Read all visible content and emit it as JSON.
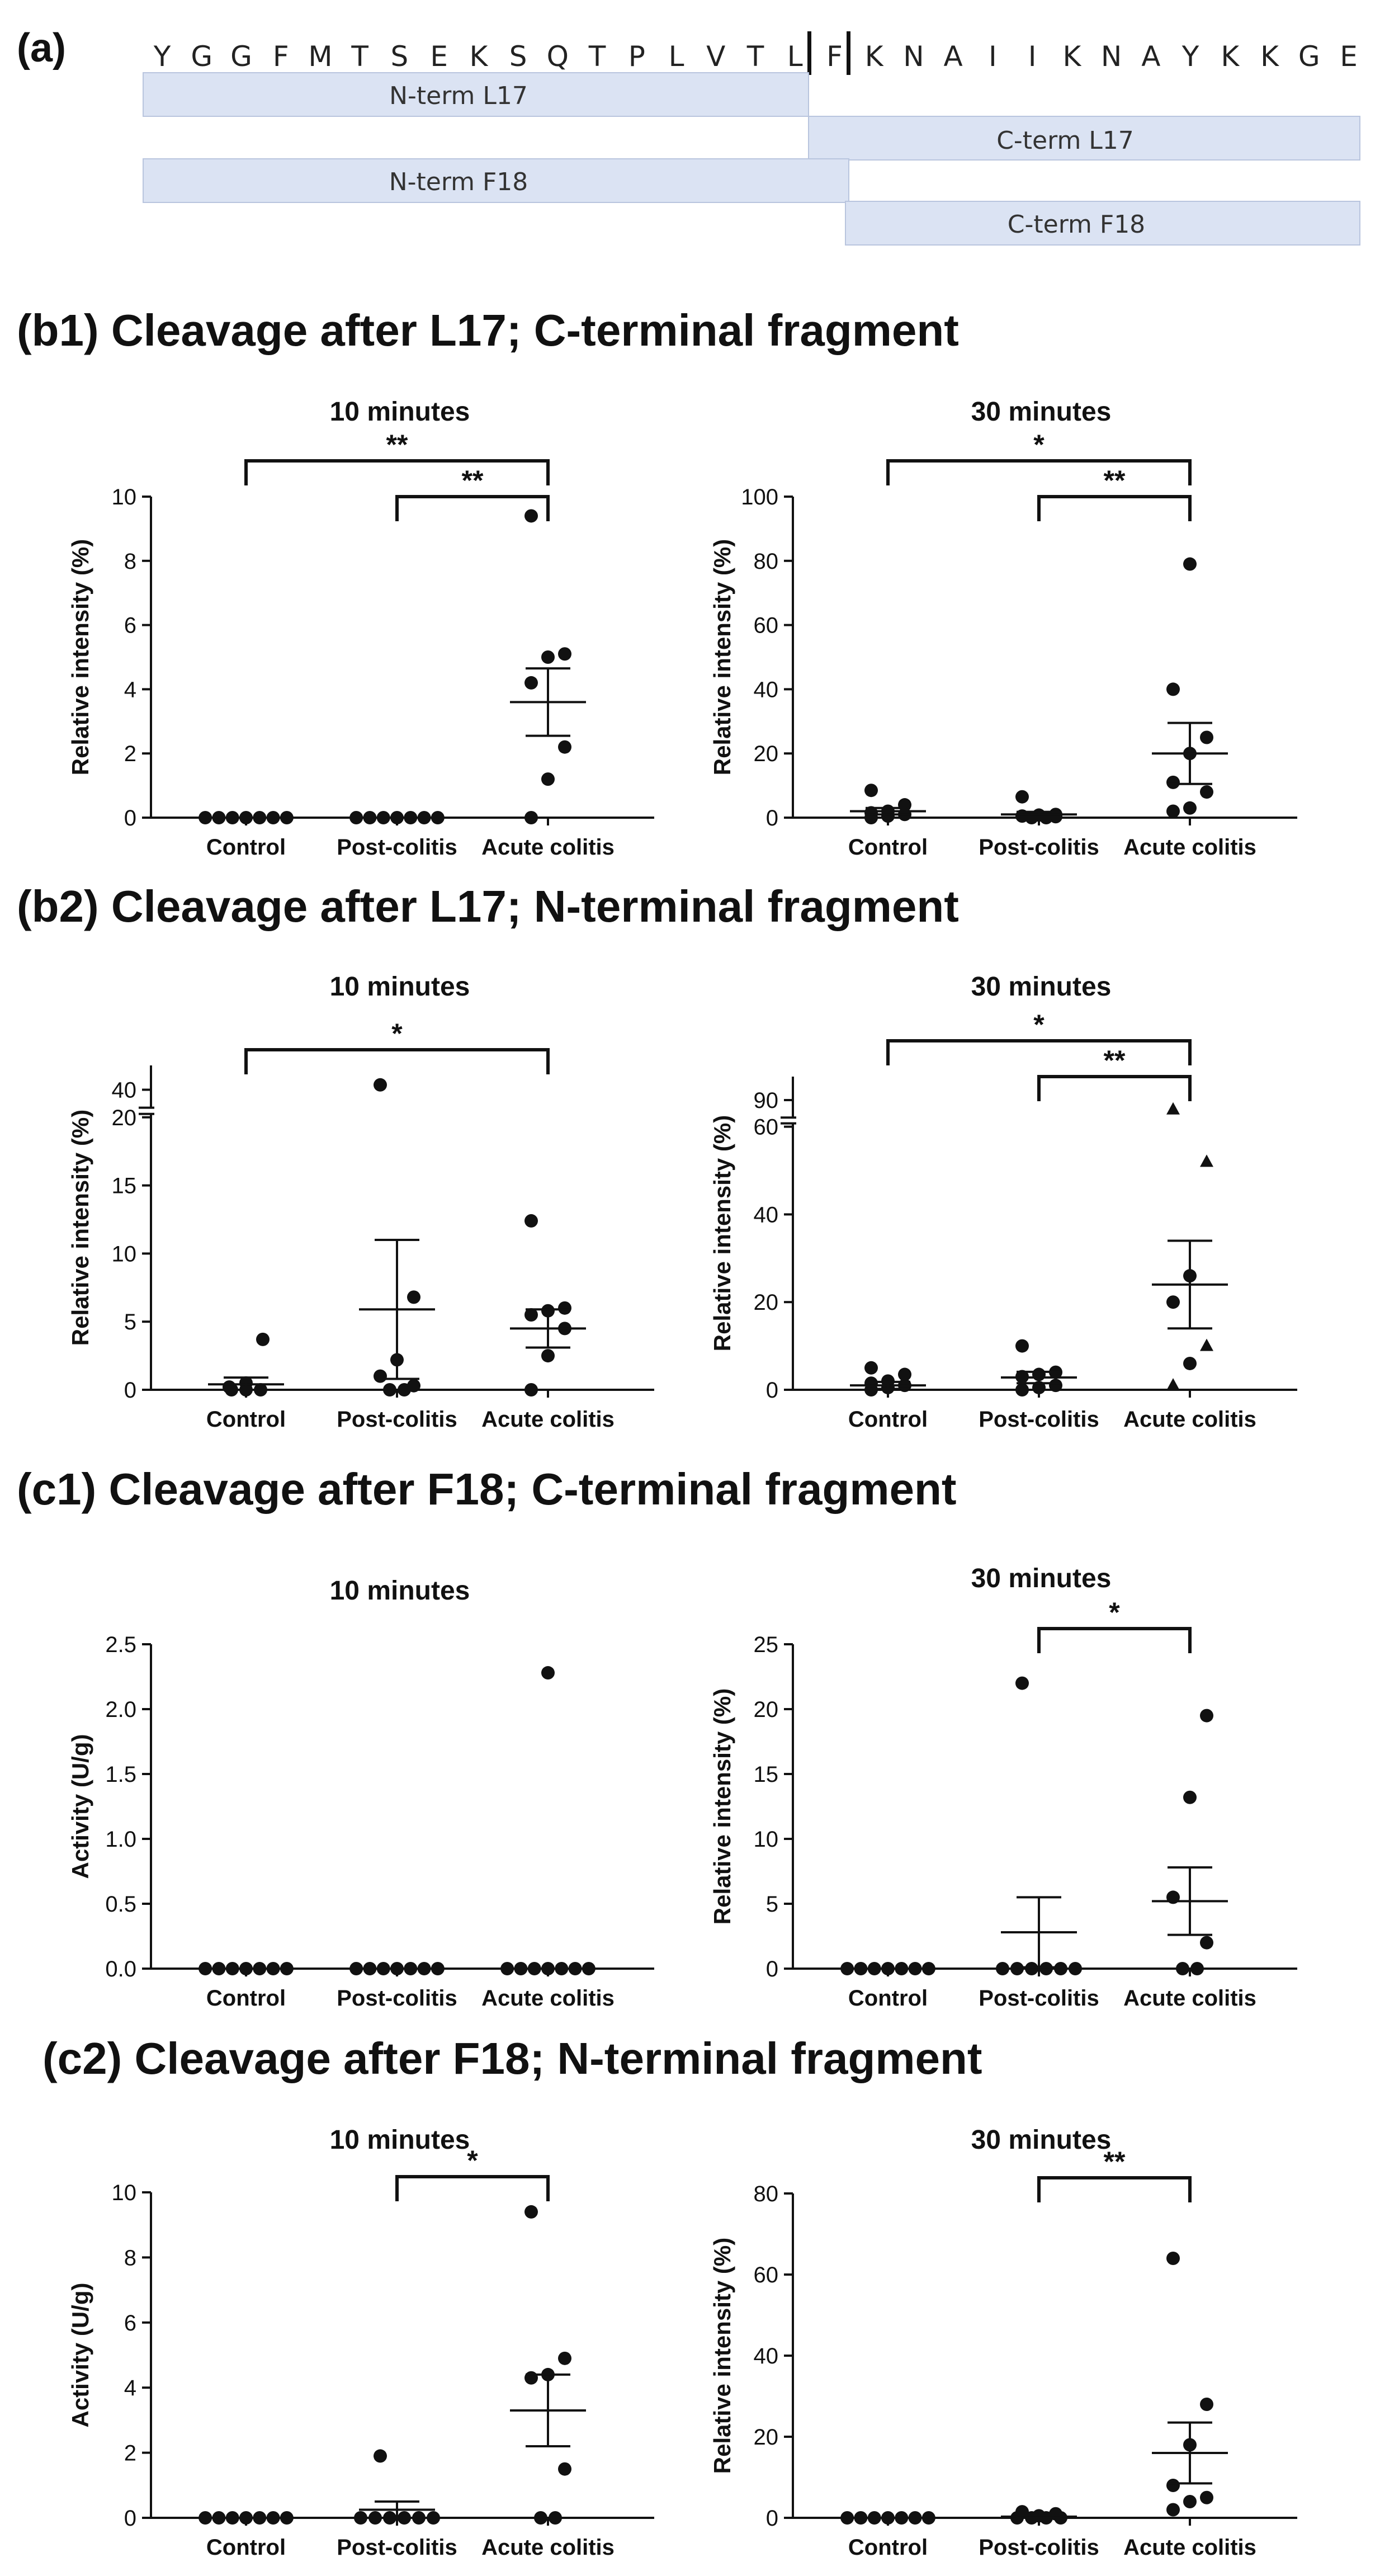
{
  "figure": {
    "panel_a": {
      "label": "(a)",
      "sequence": [
        "Y",
        "G",
        "G",
        "F",
        "M",
        "T",
        "S",
        "E",
        "K",
        "S",
        "Q",
        "T",
        "P",
        "L",
        "V",
        "T",
        "L",
        "F",
        "K",
        "N",
        "A",
        "I",
        "I",
        "K",
        "N",
        "A",
        "Y",
        "K",
        "K",
        "G",
        "E"
      ],
      "fragments": [
        "N-term L17",
        "C-term L17",
        "N-term F18",
        "C-term F18"
      ]
    },
    "sections": [
      {
        "heading": "(b1) Cleavage after L17; C-terminal fragment"
      },
      {
        "heading": "(b2) Cleavage after L17; N-terminal fragment"
      },
      {
        "heading": "(c1) Cleavage after F18; C-terminal fragment"
      },
      {
        "heading": "(c2) Cleavage after F18; N-terminal fragment"
      }
    ]
  },
  "chart_data": [
    {
      "id": "b1-10",
      "type": "scatter",
      "title": "10 minutes",
      "ylabel": "Relative intensity (%)",
      "ylim": [
        0,
        10
      ],
      "yticks": [
        0,
        2,
        4,
        6,
        8,
        10
      ],
      "categories": [
        "Control",
        "Post-colitis",
        "Acute colitis"
      ],
      "series": [
        {
          "values": [
            0,
            0,
            0,
            0,
            0,
            0,
            0
          ],
          "mean": 0,
          "sem": 0
        },
        {
          "values": [
            0,
            0,
            0,
            0,
            0,
            0,
            0
          ],
          "mean": 0,
          "sem": 0
        },
        {
          "values": [
            0,
            1.2,
            2.2,
            4.2,
            5.0,
            5.1,
            9.4
          ],
          "mean": 3.6,
          "sem": 1.05
        }
      ],
      "significance": [
        {
          "from": 0,
          "to": 2,
          "label": "**"
        },
        {
          "from": 1,
          "to": 2,
          "label": "**"
        }
      ]
    },
    {
      "id": "b1-30",
      "type": "scatter",
      "title": "30 minutes",
      "ylabel": "Relative intensity (%)",
      "ylim": [
        0,
        100
      ],
      "yticks": [
        0,
        20,
        40,
        60,
        80,
        100
      ],
      "categories": [
        "Control",
        "Post-colitis",
        "Acute colitis"
      ],
      "series": [
        {
          "values": [
            0,
            0.5,
            1,
            1.5,
            2,
            4,
            8.5
          ],
          "mean": 2,
          "sem": 1
        },
        {
          "values": [
            0,
            0,
            0.3,
            0.5,
            0.8,
            1,
            6.5
          ],
          "mean": 1,
          "sem": 0.8
        },
        {
          "values": [
            2,
            3,
            8,
            11,
            20,
            25,
            40,
            79
          ],
          "mean": 20,
          "sem": 9.5
        }
      ],
      "significance": [
        {
          "from": 0,
          "to": 2,
          "label": "*"
        },
        {
          "from": 1,
          "to": 2,
          "label": "**"
        }
      ]
    },
    {
      "id": "b2-10",
      "type": "scatter",
      "title": "10 minutes",
      "ylabel": "Relative intensity (%)",
      "ylim": [
        0,
        45
      ],
      "yticks": [
        0,
        5,
        10,
        15,
        20,
        40
      ],
      "axis_break": [
        20,
        37
      ],
      "categories": [
        "Control",
        "Post-colitis",
        "Acute colitis"
      ],
      "series": [
        {
          "values": [
            0,
            0,
            0,
            0.2,
            0.5,
            3.7
          ],
          "mean": 0.4,
          "sem": 0.5
        },
        {
          "values": [
            0,
            0,
            0.3,
            1,
            2.2,
            6.8,
            41
          ],
          "mean": 5.9,
          "sem": 5.1
        },
        {
          "values": [
            0,
            2.5,
            4.5,
            5.5,
            5.8,
            6,
            12.4
          ],
          "mean": 4.5,
          "sem": 1.4
        }
      ],
      "significance": [
        {
          "from": 0,
          "to": 2,
          "label": "*"
        }
      ]
    },
    {
      "id": "b2-30",
      "type": "scatter",
      "title": "30 minutes",
      "ylabel": "Relative intensity (%)",
      "ylim": [
        0,
        95
      ],
      "yticks": [
        0,
        20,
        40,
        60,
        90
      ],
      "axis_break": [
        60,
        87
      ],
      "categories": [
        "Control",
        "Post-colitis",
        "Acute colitis"
      ],
      "series": [
        {
          "values": [
            0,
            0.5,
            1,
            1.5,
            2,
            3.5,
            5
          ],
          "mean": 1,
          "sem": 0.8
        },
        {
          "values": [
            0,
            0.5,
            1,
            3,
            3.5,
            4,
            10
          ],
          "mean": 2.8,
          "sem": 1.3
        },
        {
          "values": [
            1,
            6,
            10,
            20,
            26,
            52,
            88
          ],
          "mean": 24,
          "sem": 10
        },
        {
          "label_markers": "triangles at 88, 52, 10, 1"
        }
      ],
      "significance": [
        {
          "from": 0,
          "to": 2,
          "label": "*"
        },
        {
          "from": 1,
          "to": 2,
          "label": "**"
        }
      ]
    },
    {
      "id": "c1-10",
      "type": "scatter",
      "title": "10 minutes",
      "ylabel": "Activity (U/g)",
      "ylim": [
        0,
        2.5
      ],
      "yticks": [
        0.0,
        0.5,
        1.0,
        1.5,
        2.0,
        2.5
      ],
      "categories": [
        "Control",
        "Post-colitis",
        "Acute colitis"
      ],
      "series": [
        {
          "values": [
            0,
            0,
            0,
            0,
            0,
            0,
            0
          ],
          "mean": null,
          "sem": null
        },
        {
          "values": [
            0,
            0,
            0,
            0,
            0,
            0,
            0
          ],
          "mean": null,
          "sem": null
        },
        {
          "values": [
            0,
            0,
            0,
            0,
            0,
            0,
            0,
            2.28
          ],
          "mean": null,
          "sem": null
        }
      ],
      "significance": []
    },
    {
      "id": "c1-30",
      "type": "scatter",
      "title": "30 minutes",
      "ylabel": "Relative intensity (%)",
      "ylim": [
        0,
        25
      ],
      "yticks": [
        0,
        5,
        10,
        15,
        20,
        25
      ],
      "categories": [
        "Control",
        "Post-colitis",
        "Acute colitis"
      ],
      "series": [
        {
          "values": [
            0,
            0,
            0,
            0,
            0,
            0,
            0
          ],
          "mean": 0,
          "sem": 0
        },
        {
          "values": [
            0,
            0,
            0,
            0,
            0,
            0,
            22
          ],
          "mean": 2.8,
          "sem": 2.7
        },
        {
          "values": [
            0,
            0,
            2,
            5.5,
            13.2,
            19.5
          ],
          "mean": 5.2,
          "sem": 2.6
        }
      ],
      "significance": [
        {
          "from": 1,
          "to": 2,
          "label": "*"
        }
      ]
    },
    {
      "id": "c2-10",
      "type": "scatter",
      "title": "10 minutes",
      "ylabel": "Activity (U/g)",
      "ylim": [
        0,
        10
      ],
      "yticks": [
        0,
        2,
        4,
        6,
        8,
        10
      ],
      "categories": [
        "Control",
        "Post-colitis",
        "Acute colitis"
      ],
      "series": [
        {
          "values": [
            0,
            0,
            0,
            0,
            0,
            0,
            0
          ],
          "mean": 0,
          "sem": 0
        },
        {
          "values": [
            0,
            0,
            0,
            0,
            0,
            0,
            1.9
          ],
          "mean": 0.25,
          "sem": 0.25
        },
        {
          "values": [
            0,
            0,
            1.5,
            4.3,
            4.4,
            4.9,
            9.4
          ],
          "mean": 3.3,
          "sem": 1.1
        }
      ],
      "significance": [
        {
          "from": 1,
          "to": 2,
          "label": "*"
        }
      ]
    },
    {
      "id": "c2-30",
      "type": "scatter",
      "title": "30 minutes",
      "ylabel": "Relative intensity (%)",
      "ylim": [
        0,
        80
      ],
      "yticks": [
        0,
        20,
        40,
        60,
        80
      ],
      "categories": [
        "Control",
        "Post-colitis",
        "Acute colitis"
      ],
      "series": [
        {
          "values": [
            0,
            0,
            0,
            0,
            0,
            0,
            0
          ],
          "mean": 0,
          "sem": 0
        },
        {
          "values": [
            0,
            0,
            0,
            0,
            0.5,
            1,
            1.5
          ],
          "mean": 0.3,
          "sem": 0.3
        },
        {
          "values": [
            2,
            4,
            5,
            8,
            18,
            28,
            64
          ],
          "mean": 16,
          "sem": 7.5
        }
      ],
      "significance": [
        {
          "from": 1,
          "to": 2,
          "label": "**"
        }
      ]
    }
  ]
}
